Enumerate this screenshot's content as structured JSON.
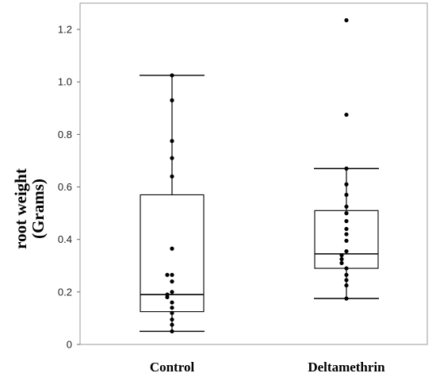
{
  "chart_data": {
    "type": "box",
    "title": "",
    "xlabel": "",
    "ylabel": [
      "root weight",
      "(Grams)"
    ],
    "ylim": [
      0,
      1.3
    ],
    "yticks": [
      0,
      0.2,
      0.4,
      0.6,
      0.8,
      1.0,
      1.2
    ],
    "ytick_labels": [
      "0",
      "0.2",
      "0.4",
      "0.6",
      "0.8",
      "1.0",
      "1.2"
    ],
    "grid": false,
    "legend": "none",
    "categories": [
      "Control",
      "Deltamethrin"
    ],
    "boxes": [
      {
        "category": "Control",
        "whisker_low": 0.05,
        "q1": 0.125,
        "median": 0.19,
        "q3": 0.57,
        "whisker_high": 1.025,
        "points": [
          1.025,
          0.93,
          0.775,
          0.71,
          0.64,
          0.365,
          0.265,
          0.265,
          0.24,
          0.2,
          0.19,
          0.18,
          0.16,
          0.14,
          0.12,
          0.095,
          0.075,
          0.05
        ]
      },
      {
        "category": "Deltamethrin",
        "whisker_low": 0.175,
        "q1": 0.29,
        "median": 0.345,
        "q3": 0.51,
        "whisker_high": 0.67,
        "points": [
          1.235,
          0.875,
          0.67,
          0.61,
          0.57,
          0.525,
          0.5,
          0.47,
          0.44,
          0.42,
          0.395,
          0.355,
          0.34,
          0.325,
          0.31,
          0.29,
          0.265,
          0.245,
          0.225,
          0.175
        ]
      }
    ],
    "colors": {
      "axis": "#000000",
      "box": "#000000",
      "point": "#000000",
      "background": "#ffffff"
    }
  }
}
